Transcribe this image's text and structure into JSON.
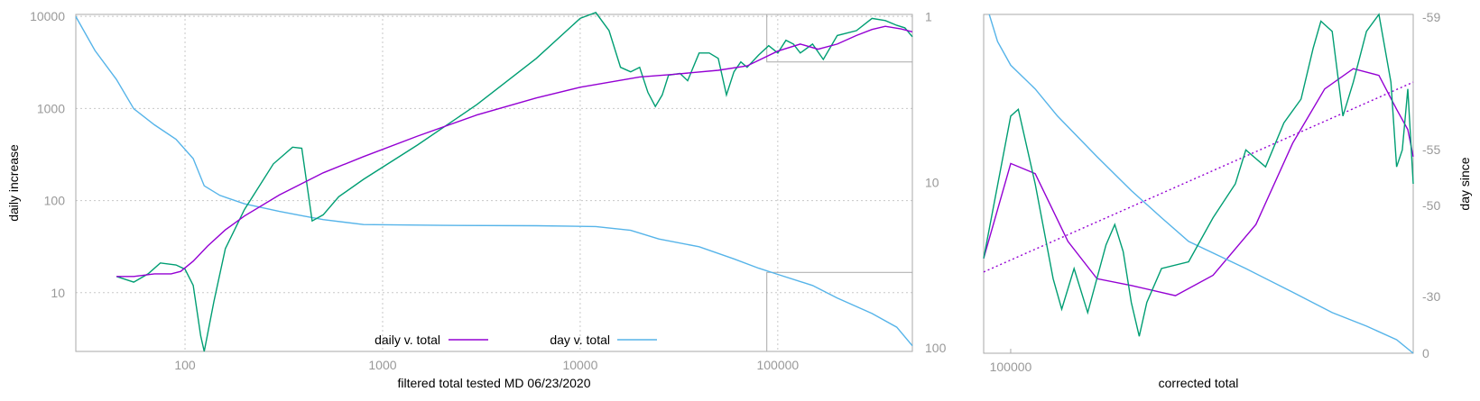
{
  "chart_data": [
    {
      "type": "line",
      "title": "",
      "xlabel": "filtered total tested MD 06/23/2020",
      "ylabel": "daily increase",
      "x_scale": "log",
      "y_scale": "log",
      "y2_scale": "log-reversed",
      "xlim": [
        28,
        480000
      ],
      "ylim": [
        2.3,
        10500
      ],
      "y2lim": [
        0.97,
        105
      ],
      "x_ticks": [
        "100",
        "1000",
        "10000",
        "100000"
      ],
      "y_ticks": [
        "10",
        "100",
        "1000",
        "10000"
      ],
      "y2_ticks": [
        "1",
        "10",
        "100"
      ],
      "grid": true,
      "legend_position": "bottom-center",
      "colors": {
        "daily": "#9400d3",
        "day": "#56b4e9",
        "raw": "#009e73",
        "inset": "#aaaaaa"
      },
      "series": [
        {
          "name": "daily v. total",
          "axis": "y",
          "points": [
            [
              45,
              15
            ],
            [
              55,
              15
            ],
            [
              70,
              16
            ],
            [
              85,
              16
            ],
            [
              95,
              17
            ],
            [
              110,
              22
            ],
            [
              130,
              32
            ],
            [
              160,
              48
            ],
            [
              200,
              68
            ],
            [
              300,
              115
            ],
            [
              500,
              200
            ],
            [
              800,
              300
            ],
            [
              1500,
              500
            ],
            [
              3000,
              850
            ],
            [
              6000,
              1300
            ],
            [
              10000,
              1700
            ],
            [
              20000,
              2200
            ],
            [
              30000,
              2350
            ],
            [
              50000,
              2600
            ],
            [
              70000,
              2900
            ],
            [
              100000,
              4200
            ],
            [
              130000,
              5000
            ],
            [
              160000,
              4400
            ],
            [
              200000,
              5000
            ],
            [
              250000,
              6200
            ],
            [
              300000,
              7200
            ],
            [
              350000,
              7800
            ],
            [
              420000,
              7300
            ],
            [
              480000,
              6800
            ]
          ]
        },
        {
          "name": "day v. total",
          "axis": "y2",
          "points": [
            [
              28,
              1
            ],
            [
              35,
              1.6
            ],
            [
              45,
              2.4
            ],
            [
              55,
              3.6
            ],
            [
              70,
              4.5
            ],
            [
              90,
              5.5
            ],
            [
              110,
              7.2
            ],
            [
              125,
              10.5
            ],
            [
              150,
              12
            ],
            [
              200,
              13.5
            ],
            [
              300,
              15
            ],
            [
              400,
              16
            ],
            [
              500,
              16.8
            ],
            [
              800,
              18
            ],
            [
              2000,
              18.2
            ],
            [
              6000,
              18.3
            ],
            [
              12000,
              18.5
            ],
            [
              18000,
              19.5
            ],
            [
              25000,
              22
            ],
            [
              40000,
              24.5
            ],
            [
              60000,
              29
            ],
            [
              80000,
              33
            ],
            [
              100000,
              36
            ],
            [
              150000,
              42
            ],
            [
              200000,
              50
            ],
            [
              300000,
              62
            ],
            [
              400000,
              75
            ],
            [
              480000,
              97
            ]
          ]
        },
        {
          "name": "",
          "axis": "y",
          "points": [
            [
              45,
              15
            ],
            [
              55,
              13
            ],
            [
              65,
              16
            ],
            [
              75,
              21
            ],
            [
              90,
              20
            ],
            [
              100,
              18
            ],
            [
              110,
              12
            ],
            [
              120,
              3.4
            ],
            [
              125,
              2.3
            ],
            [
              140,
              8
            ],
            [
              160,
              30
            ],
            [
              200,
              80
            ],
            [
              280,
              250
            ],
            [
              350,
              380
            ],
            [
              390,
              370
            ],
            [
              440,
              60
            ],
            [
              500,
              70
            ],
            [
              600,
              110
            ],
            [
              800,
              170
            ],
            [
              1500,
              400
            ],
            [
              3000,
              1100
            ],
            [
              6000,
              3500
            ],
            [
              10000,
              9500
            ],
            [
              12000,
              11000
            ],
            [
              14000,
              7000
            ],
            [
              16000,
              2800
            ],
            [
              18000,
              2500
            ],
            [
              20000,
              2800
            ],
            [
              22000,
              1500
            ],
            [
              24000,
              1050
            ],
            [
              26000,
              1400
            ],
            [
              28000,
              2300
            ],
            [
              32000,
              2400
            ],
            [
              35000,
              2000
            ],
            [
              40000,
              4000
            ],
            [
              45000,
              4000
            ],
            [
              50000,
              3500
            ],
            [
              55000,
              1400
            ],
            [
              60000,
              2500
            ],
            [
              65000,
              3200
            ],
            [
              70000,
              2800
            ],
            [
              80000,
              3800
            ],
            [
              90000,
              4800
            ],
            [
              100000,
              4000
            ],
            [
              110000,
              5500
            ],
            [
              120000,
              5000
            ],
            [
              130000,
              4000
            ],
            [
              150000,
              5000
            ],
            [
              170000,
              3400
            ],
            [
              200000,
              6200
            ],
            [
              250000,
              7000
            ],
            [
              300000,
              9500
            ],
            [
              350000,
              9000
            ],
            [
              400000,
              8000
            ],
            [
              440000,
              7500
            ],
            [
              480000,
              6000
            ]
          ]
        }
      ],
      "inset_boxes": [
        {
          "x": [
            88000,
            480000
          ],
          "y": [
            3200,
            10500
          ]
        },
        {
          "x": [
            88000,
            480000
          ],
          "y2": [
            35,
            105
          ]
        }
      ]
    },
    {
      "type": "line",
      "title": "",
      "xlabel": "corrected total",
      "ylabel": "day since",
      "x_scale": "log",
      "xlim": [
        90000,
        480000
      ],
      "y2lim": [
        0,
        62
      ],
      "x_ticks": [
        "100000"
      ],
      "y2_ticks": [
        "-59",
        "-55",
        "-50",
        "-30",
        "0"
      ],
      "grid": false,
      "series": [
        {
          "name": "",
          "normalized_y": true,
          "points": [
            [
              90000,
              0.28
            ],
            [
              100000,
              0.56
            ],
            [
              110000,
              0.53
            ],
            [
              125000,
              0.33
            ],
            [
              140000,
              0.22
            ],
            [
              160000,
              0.2
            ],
            [
              190000,
              0.17
            ],
            [
              220000,
              0.23
            ],
            [
              260000,
              0.38
            ],
            [
              300000,
              0.62
            ],
            [
              340000,
              0.78
            ],
            [
              380000,
              0.84
            ],
            [
              420000,
              0.82
            ],
            [
              450000,
              0.72
            ],
            [
              470000,
              0.66
            ],
            [
              480000,
              0.58
            ]
          ]
        },
        {
          "name": "",
          "normalized_y": true,
          "points": [
            [
              90000,
              0.24
            ],
            [
              480000,
              0.8
            ]
          ]
        },
        {
          "name": "",
          "normalized_y": true,
          "points": [
            [
              92000,
              1.0
            ],
            [
              95000,
              0.92
            ],
            [
              100000,
              0.85
            ],
            [
              110000,
              0.78
            ],
            [
              120000,
              0.7
            ],
            [
              140000,
              0.58
            ],
            [
              160000,
              0.48
            ],
            [
              180000,
              0.4
            ],
            [
              200000,
              0.33
            ],
            [
              250000,
              0.25
            ],
            [
              300000,
              0.18
            ],
            [
              350000,
              0.12
            ],
            [
              400000,
              0.08
            ],
            [
              450000,
              0.04
            ],
            [
              480000,
              0.0
            ]
          ]
        },
        {
          "name": "",
          "normalized_y": true,
          "points": [
            [
              90000,
              0.28
            ],
            [
              100000,
              0.7
            ],
            [
              103000,
              0.72
            ],
            [
              110000,
              0.5
            ],
            [
              118000,
              0.22
            ],
            [
              122000,
              0.13
            ],
            [
              128000,
              0.25
            ],
            [
              135000,
              0.12
            ],
            [
              145000,
              0.32
            ],
            [
              150000,
              0.38
            ],
            [
              155000,
              0.3
            ],
            [
              160000,
              0.15
            ],
            [
              165000,
              0.05
            ],
            [
              170000,
              0.15
            ],
            [
              180000,
              0.25
            ],
            [
              200000,
              0.27
            ],
            [
              220000,
              0.4
            ],
            [
              240000,
              0.5
            ],
            [
              250000,
              0.6
            ],
            [
              270000,
              0.55
            ],
            [
              290000,
              0.68
            ],
            [
              310000,
              0.75
            ],
            [
              325000,
              0.9
            ],
            [
              335000,
              0.98
            ],
            [
              350000,
              0.95
            ],
            [
              365000,
              0.7
            ],
            [
              380000,
              0.8
            ],
            [
              400000,
              0.95
            ],
            [
              420000,
              1.0
            ],
            [
              440000,
              0.8
            ],
            [
              450000,
              0.55
            ],
            [
              460000,
              0.6
            ],
            [
              470000,
              0.78
            ],
            [
              480000,
              0.5
            ]
          ]
        }
      ]
    }
  ]
}
